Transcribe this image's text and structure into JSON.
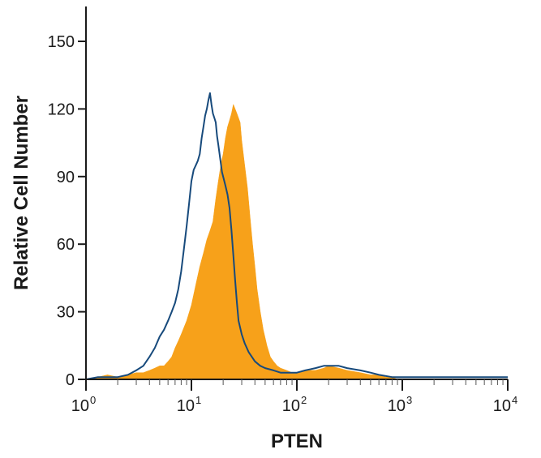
{
  "chart_data": {
    "type": "histogram",
    "title": "",
    "xlabel": "PTEN",
    "ylabel": "Relative Cell Number",
    "x_scale": "log",
    "xlim": [
      1,
      10000
    ],
    "ylim": [
      0,
      150
    ],
    "x_tick_labels": [
      {
        "base": "10",
        "exp": "0",
        "value": 1
      },
      {
        "base": "10",
        "exp": "1",
        "value": 10
      },
      {
        "base": "10",
        "exp": "2",
        "value": 100
      },
      {
        "base": "10",
        "exp": "3",
        "value": 1000
      },
      {
        "base": "10",
        "exp": "4",
        "value": 10000
      }
    ],
    "y_ticks": [
      0,
      30,
      60,
      90,
      120,
      150
    ],
    "y_tick_labels": [
      "0",
      "30",
      "60",
      "90",
      "120",
      "150"
    ],
    "grid": false,
    "legend": "none",
    "series": [
      {
        "style": "filled",
        "color": "#f7a11a",
        "points": [
          [
            1.0,
            0
          ],
          [
            1.3,
            1
          ],
          [
            1.6,
            2
          ],
          [
            2.0,
            1
          ],
          [
            2.5,
            2
          ],
          [
            3.0,
            3
          ],
          [
            3.5,
            3
          ],
          [
            4.0,
            4
          ],
          [
            4.5,
            5
          ],
          [
            5.0,
            6
          ],
          [
            5.5,
            6
          ],
          [
            6.0,
            8
          ],
          [
            6.5,
            10
          ],
          [
            7.0,
            14
          ],
          [
            7.5,
            17
          ],
          [
            8.0,
            20
          ],
          [
            9.0,
            26
          ],
          [
            10.0,
            33
          ],
          [
            11.0,
            42
          ],
          [
            12.0,
            50
          ],
          [
            13.0,
            56
          ],
          [
            14.0,
            62
          ],
          [
            15.0,
            66
          ],
          [
            16.0,
            70
          ],
          [
            17.0,
            80
          ],
          [
            18.0,
            88
          ],
          [
            19.0,
            95
          ],
          [
            20.0,
            100
          ],
          [
            21.0,
            107
          ],
          [
            22.0,
            112
          ],
          [
            23.0,
            115
          ],
          [
            24.0,
            118
          ],
          [
            25.0,
            122
          ],
          [
            26.0,
            120
          ],
          [
            27.0,
            118
          ],
          [
            28.0,
            116
          ],
          [
            29.0,
            114
          ],
          [
            30.0,
            106
          ],
          [
            32.0,
            95
          ],
          [
            34.0,
            85
          ],
          [
            36.0,
            72
          ],
          [
            38.0,
            60
          ],
          [
            40.0,
            50
          ],
          [
            42.0,
            40
          ],
          [
            45.0,
            30
          ],
          [
            48.0,
            22
          ],
          [
            52.0,
            15
          ],
          [
            56.0,
            10
          ],
          [
            60.0,
            8
          ],
          [
            65.0,
            6
          ],
          [
            70.0,
            5
          ],
          [
            80.0,
            4
          ],
          [
            90.0,
            3
          ],
          [
            100.0,
            3
          ],
          [
            120.0,
            4
          ],
          [
            150.0,
            4
          ],
          [
            180.0,
            5
          ],
          [
            200.0,
            6
          ],
          [
            250.0,
            5
          ],
          [
            300.0,
            4
          ],
          [
            400.0,
            3
          ],
          [
            500.0,
            2
          ],
          [
            600.0,
            2
          ],
          [
            700.0,
            1
          ],
          [
            800.0,
            1
          ],
          [
            900.0,
            0
          ],
          [
            1000.0,
            0
          ]
        ]
      },
      {
        "style": "line",
        "color": "#174a7c",
        "points": [
          [
            1.0,
            0
          ],
          [
            1.3,
            1
          ],
          [
            1.6,
            1
          ],
          [
            2.0,
            1
          ],
          [
            2.5,
            2
          ],
          [
            3.0,
            4
          ],
          [
            3.5,
            6
          ],
          [
            4.0,
            10
          ],
          [
            4.5,
            14
          ],
          [
            5.0,
            19
          ],
          [
            5.5,
            22
          ],
          [
            6.0,
            26
          ],
          [
            6.5,
            30
          ],
          [
            7.0,
            34
          ],
          [
            7.5,
            40
          ],
          [
            8.0,
            48
          ],
          [
            8.5,
            58
          ],
          [
            9.0,
            68
          ],
          [
            9.5,
            78
          ],
          [
            10.0,
            88
          ],
          [
            10.5,
            93
          ],
          [
            11.0,
            95
          ],
          [
            11.5,
            97
          ],
          [
            12.0,
            100
          ],
          [
            12.5,
            107
          ],
          [
            13.0,
            112
          ],
          [
            13.5,
            117
          ],
          [
            14.0,
            120
          ],
          [
            14.5,
            124
          ],
          [
            15.0,
            127
          ],
          [
            15.5,
            122
          ],
          [
            16.0,
            118
          ],
          [
            16.5,
            116
          ],
          [
            17.0,
            114
          ],
          [
            17.5,
            108
          ],
          [
            18.0,
            104
          ],
          [
            18.5,
            100
          ],
          [
            19.0,
            96
          ],
          [
            19.5,
            92
          ],
          [
            20.0,
            90
          ],
          [
            21.0,
            86
          ],
          [
            22.0,
            82
          ],
          [
            23.0,
            76
          ],
          [
            24.0,
            66
          ],
          [
            25.0,
            55
          ],
          [
            26.0,
            44
          ],
          [
            27.0,
            34
          ],
          [
            28.0,
            26
          ],
          [
            30.0,
            20
          ],
          [
            32.0,
            16
          ],
          [
            35.0,
            12
          ],
          [
            40.0,
            8
          ],
          [
            45.0,
            6
          ],
          [
            50.0,
            5
          ],
          [
            60.0,
            4
          ],
          [
            70.0,
            3
          ],
          [
            80.0,
            3
          ],
          [
            100.0,
            3
          ],
          [
            120.0,
            4
          ],
          [
            150.0,
            5
          ],
          [
            180.0,
            6
          ],
          [
            200.0,
            6
          ],
          [
            250.0,
            6
          ],
          [
            300.0,
            5
          ],
          [
            400.0,
            4
          ],
          [
            500.0,
            3
          ],
          [
            600.0,
            2
          ],
          [
            800.0,
            1
          ],
          [
            1000.0,
            1
          ],
          [
            2000.0,
            1
          ],
          [
            5000.0,
            1
          ],
          [
            10000.0,
            1
          ]
        ]
      }
    ]
  }
}
